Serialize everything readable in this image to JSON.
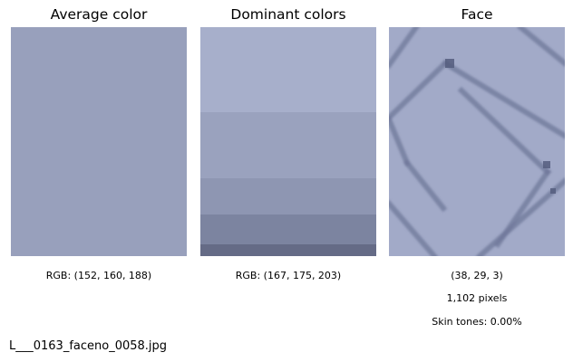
{
  "panels": {
    "average": {
      "title": "Average color",
      "caption": "RGB: (152, 160, 188)",
      "color": "#98a0bc"
    },
    "dominant": {
      "title": "Dominant colors",
      "caption": "RGB: (167, 175, 203)",
      "stripes": [
        {
          "color": "#a7afcb",
          "share": 0.37
        },
        {
          "color": "#9aa2be",
          "share": 0.29
        },
        {
          "color": "#8e96b2",
          "share": 0.16
        },
        {
          "color": "#7c84a0",
          "share": 0.13
        },
        {
          "color": "#656b86",
          "share": 0.05
        }
      ]
    },
    "face": {
      "title": "Face",
      "caption_coords": "(38, 29, 3)",
      "caption_pixels": "1,102 pixels",
      "caption_skin": "Skin tones: 0.00%",
      "base_color": "#a2aac8",
      "line_color": "#6f7899",
      "dark_color": "#555d7e"
    }
  },
  "filename": "L___0163_faceno_0058.jpg"
}
